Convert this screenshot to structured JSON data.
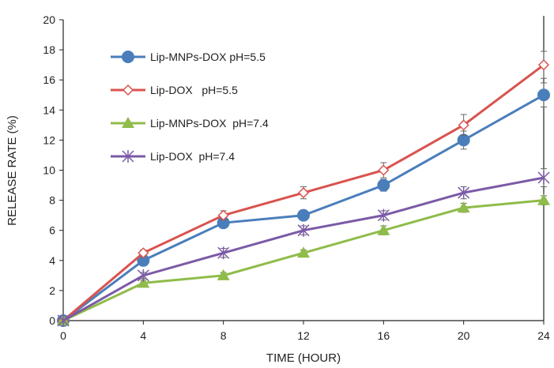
{
  "chart_data": {
    "type": "line",
    "title": "",
    "xlabel": "TIME (HOUR)",
    "ylabel": "RELEASE RATE (%)",
    "xlim": [
      0,
      24
    ],
    "ylim": [
      0,
      20
    ],
    "x": [
      0,
      4,
      8,
      12,
      16,
      20,
      24
    ],
    "x_ticks": [
      "0",
      "4",
      "8",
      "12",
      "16",
      "20",
      "24"
    ],
    "y_ticks": [
      "0",
      "2",
      "4",
      "6",
      "8",
      "10",
      "12",
      "14",
      "16",
      "18",
      "20"
    ],
    "grid": false,
    "legend_position": "top-left",
    "series": [
      {
        "name": "Lip-MNPs-DOX pH=5.5",
        "color": "#4a7ebb",
        "marker": "circle",
        "values": [
          0,
          4,
          6.5,
          7,
          9,
          12,
          15
        ],
        "errors": [
          0,
          0.3,
          0.3,
          0.3,
          0.4,
          0.6,
          0.8
        ]
      },
      {
        "name": "Lip-DOX   pH=5.5",
        "color": "#d9534f",
        "marker": "diamond-open",
        "values": [
          0,
          4.5,
          7,
          8.5,
          10,
          13,
          17
        ],
        "errors": [
          0,
          0.2,
          0.3,
          0.4,
          0.5,
          0.7,
          0.9
        ]
      },
      {
        "name": "Lip-MNPs-DOX  pH=7.4",
        "color": "#8fbc4a",
        "marker": "triangle",
        "values": [
          0,
          2.5,
          3,
          4.5,
          6,
          7.5,
          8
        ],
        "errors": [
          0,
          0.2,
          0.2,
          0.2,
          0.3,
          0.3,
          0.3
        ]
      },
      {
        "name": "Lip-DOX  pH=7.4",
        "color": "#7b5aa6",
        "marker": "x-star",
        "values": [
          0,
          3,
          4.5,
          6,
          7,
          8.5,
          9.5
        ],
        "errors": [
          0,
          0.2,
          0.3,
          0.3,
          0.3,
          0.4,
          0.6
        ]
      }
    ]
  }
}
